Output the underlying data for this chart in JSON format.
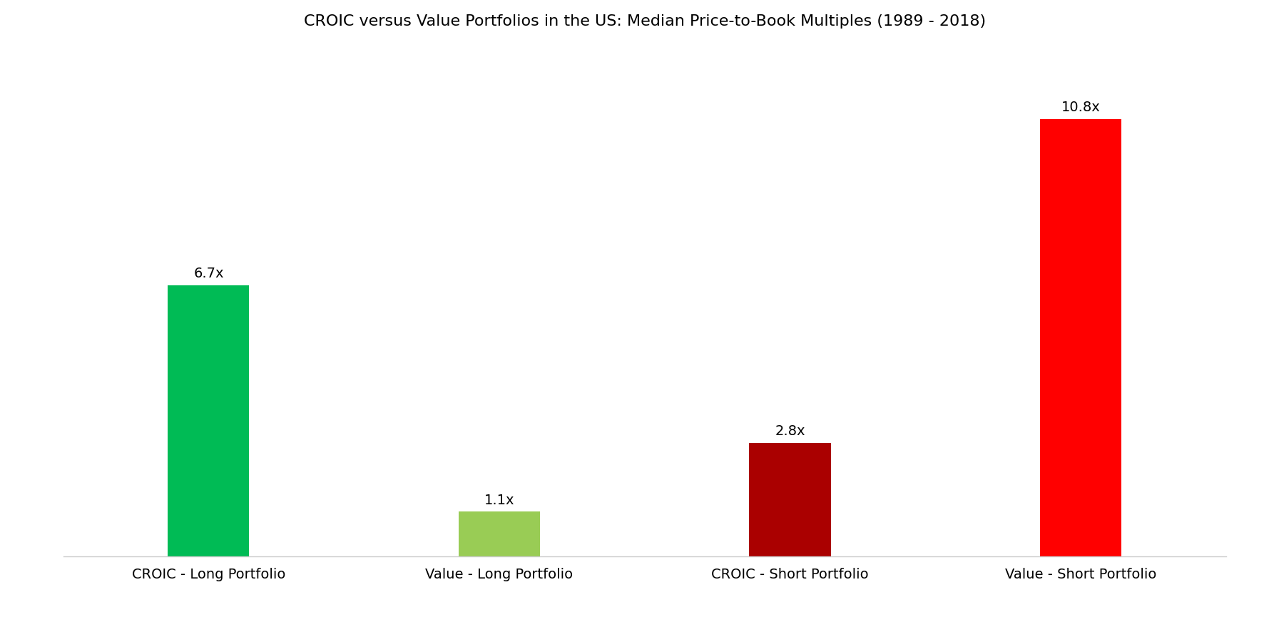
{
  "title": "CROIC versus Value Portfolios in the US: Median Price-to-Book Multiples (1989 - 2018)",
  "categories": [
    "CROIC - Long Portfolio",
    "Value - Long Portfolio",
    "CROIC - Short Portfolio",
    "Value - Short Portfolio"
  ],
  "values": [
    6.7,
    1.1,
    2.8,
    10.8
  ],
  "labels": [
    "6.7x",
    "1.1x",
    "2.8x",
    "10.8x"
  ],
  "bar_colors": [
    "#00BB55",
    "#99CC55",
    "#AA0000",
    "#FF0000"
  ],
  "background_color": "#FFFFFF",
  "title_fontsize": 16,
  "label_fontsize": 14,
  "tick_fontsize": 14,
  "bar_width": 0.28,
  "ylim": [
    0,
    12.5
  ],
  "xlim": [
    -0.5,
    3.5
  ]
}
